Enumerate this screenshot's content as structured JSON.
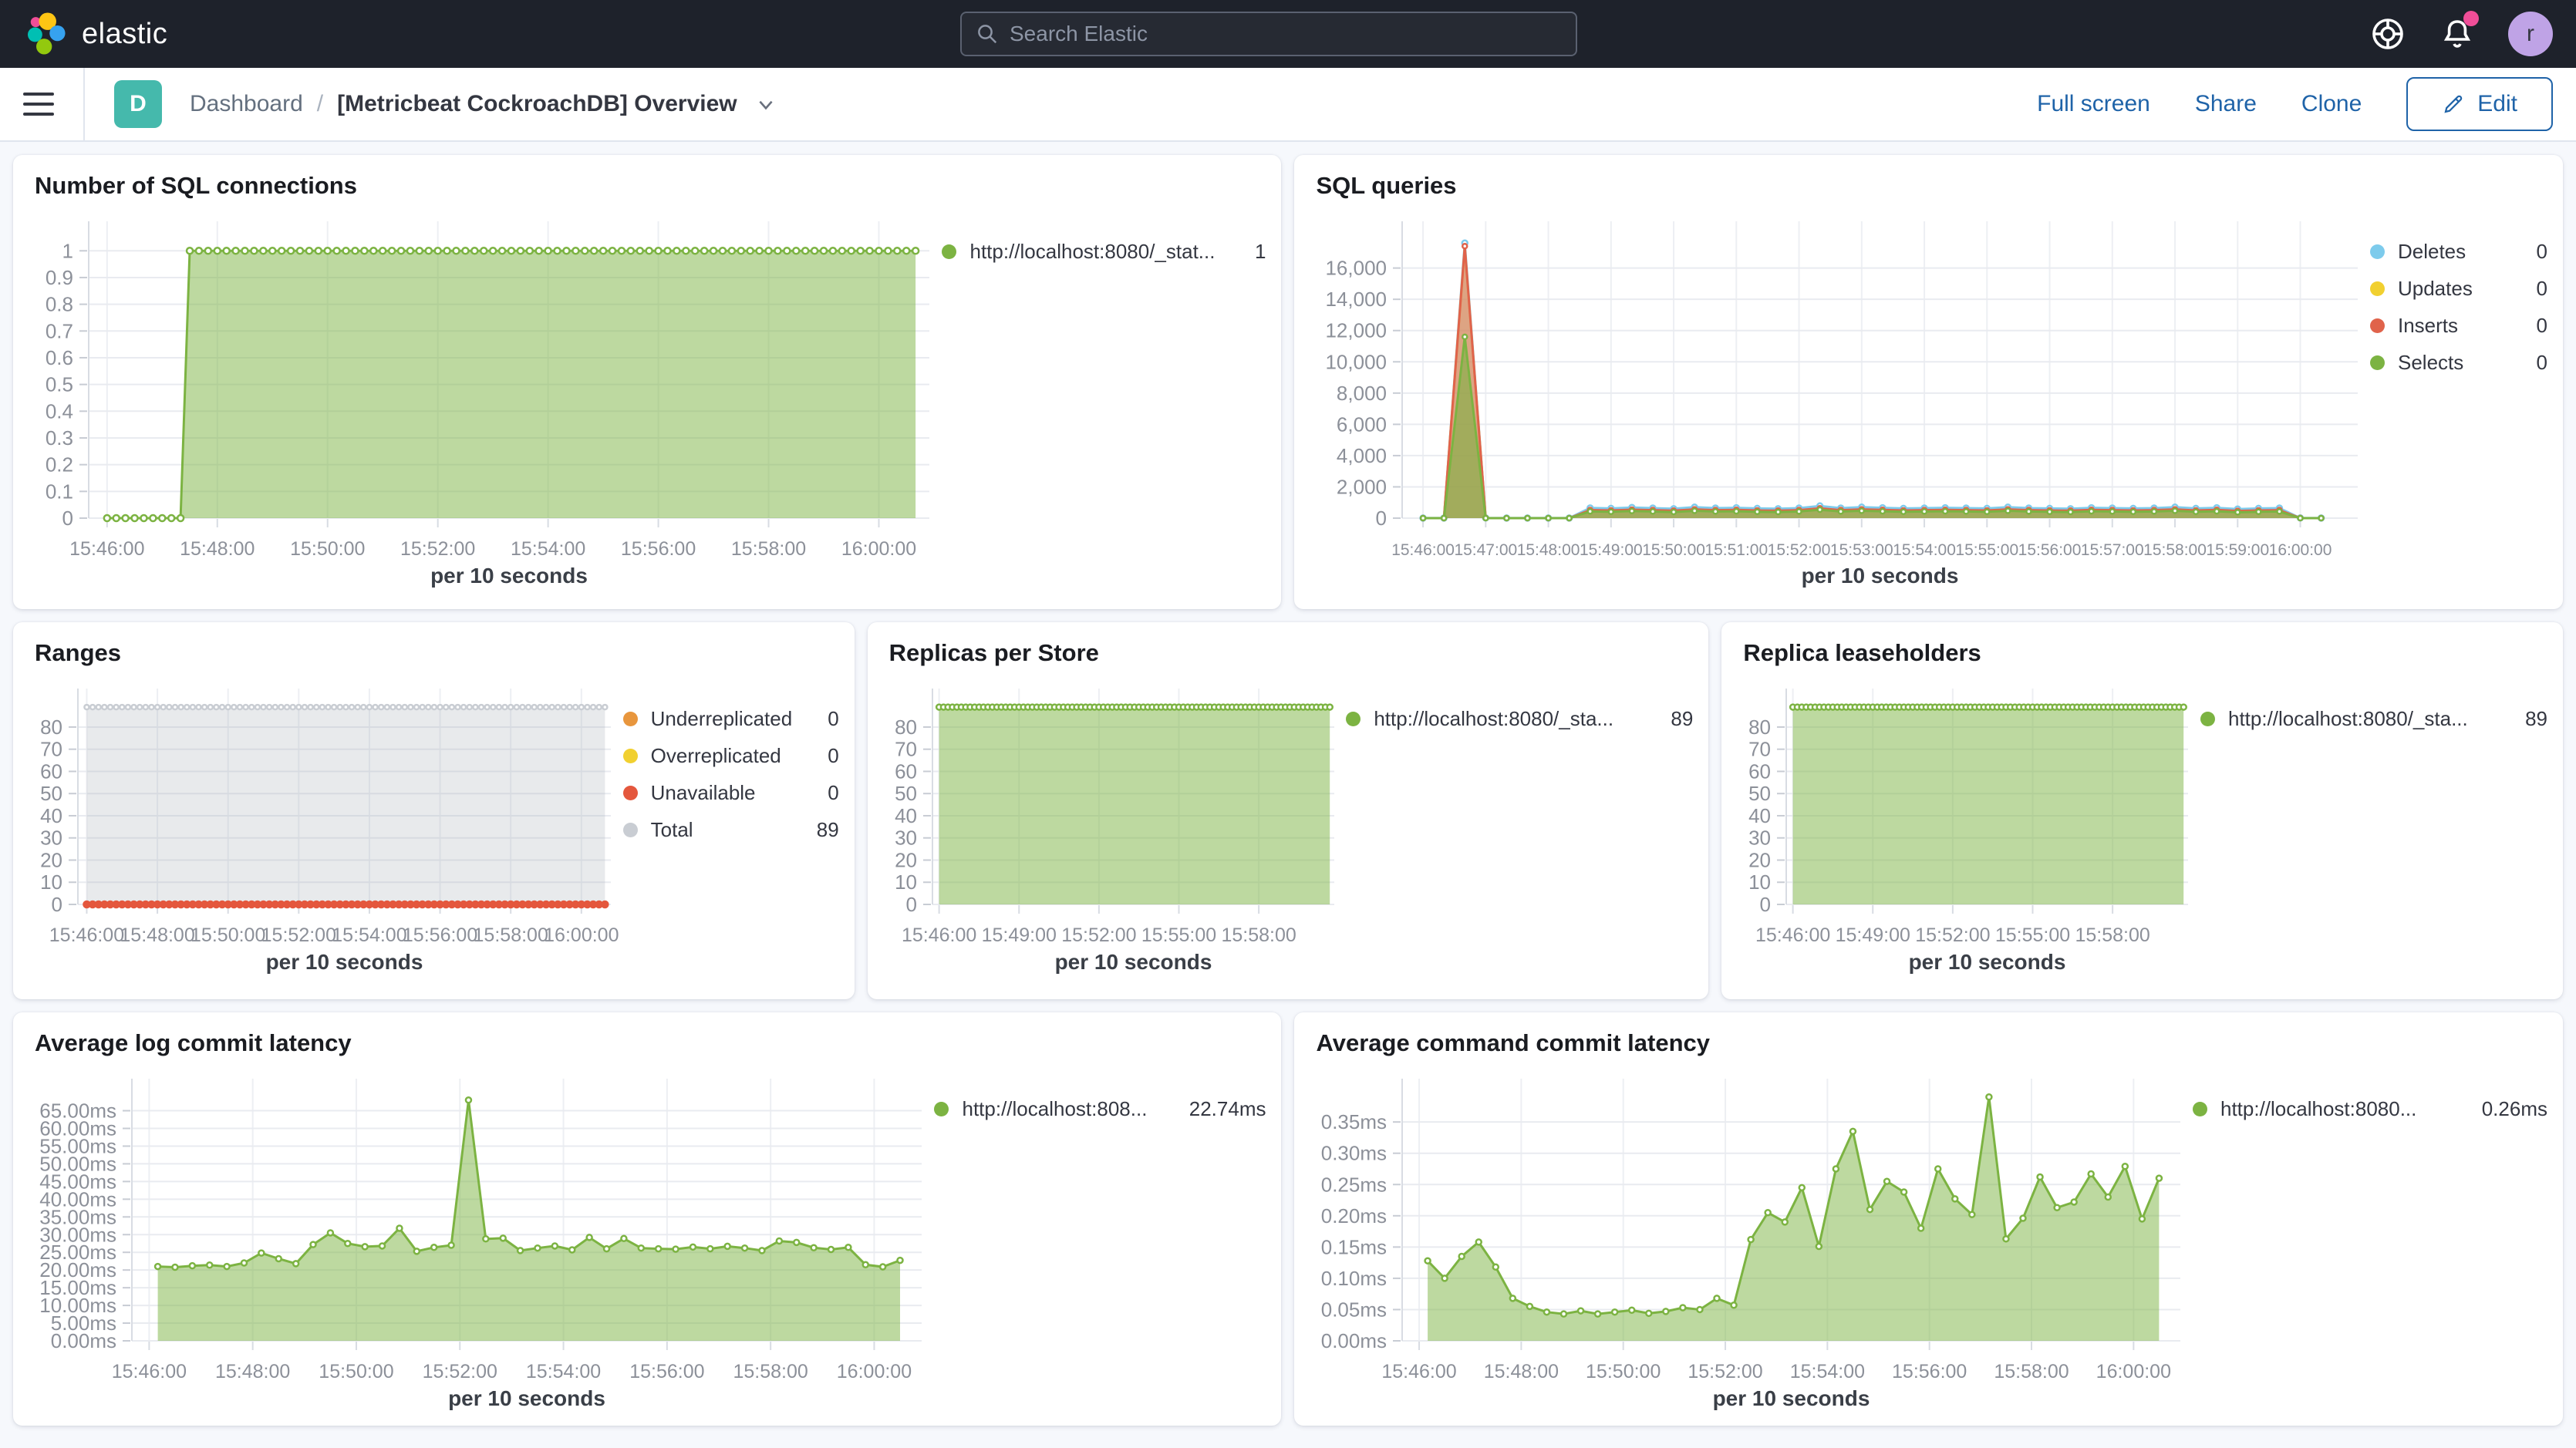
{
  "theme": {
    "header_bg": "#1E222B",
    "link_blue": "#1F63A8",
    "badge_teal": "#45B9AC",
    "notification_pink": "#F04E98",
    "avatar_purple": "#BFA3E6",
    "series_green": "#7CB342",
    "series_cyan": "#7DCBEC",
    "series_yellow": "#F1D030",
    "series_red": "#E0634B",
    "series_orange": "#E8963D",
    "series_gray": "#C9CDD3"
  },
  "nav": {
    "logo_text": "elastic",
    "search_placeholder": "Search Elastic",
    "avatar_initial": "r"
  },
  "toolbar": {
    "breadcrumb_root": "Dashboard",
    "breadcrumb_sep": "/",
    "title": "[Metricbeat CockroachDB] Overview",
    "actions": [
      "Full screen",
      "Share",
      "Clone"
    ],
    "edit_label": "Edit",
    "dashboard_badge": "D"
  },
  "charts": [
    {
      "type": "area",
      "title": "Number of SQL connections",
      "x_label": "per 10 seconds",
      "x_domain": [
        "15:45:40",
        "16:00:55"
      ],
      "x_ticks": [
        "15:46:00",
        "15:48:00",
        "15:50:00",
        "15:52:00",
        "15:54:00",
        "15:56:00",
        "15:58:00",
        "16:00:00"
      ],
      "y_min": 0,
      "y_max": 1.07,
      "y_ticks": [
        [
          1,
          "1"
        ],
        [
          0.9,
          "0.9"
        ],
        [
          0.8,
          "0.8"
        ],
        [
          0.7,
          "0.7"
        ],
        [
          0.6,
          "0.6"
        ],
        [
          0.5,
          "0.5"
        ],
        [
          0.4,
          "0.4"
        ],
        [
          0.3,
          "0.3"
        ],
        [
          0.2,
          "0.2"
        ],
        [
          0.1,
          "0.1"
        ],
        [
          0,
          "0"
        ]
      ],
      "series": [
        {
          "name": "http://localhost:8080/_stat...",
          "color": "#7CB342",
          "fill": "rgba(124,179,66,0.5)",
          "marker": true,
          "marker_r": 4,
          "runs": [
            {
              "start": "15:46:00",
              "end": "15:47:20",
              "step": 10,
              "const_value": 0
            },
            {
              "start": "15:47:30",
              "end": "16:00:40",
              "step": 10,
              "const_value": 1
            }
          ]
        }
      ],
      "legend": [
        {
          "color": "#7CB342",
          "label": "http://localhost:8080/_stat...",
          "value": "1"
        }
      ]
    },
    {
      "type": "area",
      "title": "SQL queries",
      "x_label": "per 10 seconds",
      "x_domain": [
        "15:45:40",
        "16:00:55"
      ],
      "x_ticks": [
        "15:46:00",
        "15:47:00",
        "15:48:00",
        "15:49:00",
        "15:50:00",
        "15:51:00",
        "15:52:00",
        "15:53:00",
        "15:54:00",
        "15:55:00",
        "15:56:00",
        "15:57:00",
        "15:58:00",
        "15:59:00",
        "16:00:00"
      ],
      "y_min": 0,
      "y_max": 18300,
      "y_ticks": [
        [
          0,
          "0"
        ],
        [
          2000,
          "2,000"
        ],
        [
          4000,
          "4,000"
        ],
        [
          6000,
          "6,000"
        ],
        [
          8000,
          "8,000"
        ],
        [
          10000,
          "10,000"
        ],
        [
          12000,
          "12,000"
        ],
        [
          14000,
          "14,000"
        ],
        [
          16000,
          "16,000"
        ]
      ],
      "series": [
        {
          "name": "Deletes",
          "color": "#7DCBEC",
          "fill": "rgba(125,203,236,0.35)",
          "marker": true,
          "marker_r": 3.5,
          "runs": [
            {
              "start": "15:46:00",
              "step": 20,
              "values": [
                5,
                5,
                17600,
                10,
                5,
                5,
                5,
                5,
                650,
                620,
                680,
                640,
                600,
                700,
                640,
                660,
                620,
                600,
                640,
                780,
                640,
                700,
                660,
                620,
                640,
                660,
                640,
                620,
                700,
                640,
                620,
                600,
                660,
                640,
                620,
                640,
                700,
                620,
                660,
                580,
                620,
                640,
                10,
                5
              ]
            }
          ]
        },
        {
          "name": "Updates",
          "color": "#F1D030",
          "fill": "rgba(241,208,48,0.3)",
          "marker": false,
          "runs": [
            {
              "start": "15:46:00",
              "step": 20,
              "values": [
                1,
                1,
                17350,
                4,
                1,
                1,
                1,
                1,
                490,
                465,
                515,
                485,
                452,
                530,
                485,
                500,
                465,
                452,
                485,
                600,
                485,
                530,
                500,
                465,
                485,
                500,
                485,
                465,
                530,
                485,
                465,
                452,
                500,
                485,
                465,
                485,
                530,
                465,
                500,
                437,
                465,
                485,
                4,
                1
              ]
            }
          ]
        },
        {
          "name": "Inserts",
          "color": "#E0634B",
          "fill": "rgba(224,99,75,0.5)",
          "marker": true,
          "marker_r": 3,
          "runs": [
            {
              "start": "15:46:00",
              "step": 20,
              "values": [
                2,
                2,
                17400,
                6,
                2,
                2,
                2,
                2,
                520,
                495,
                545,
                515,
                480,
                560,
                515,
                530,
                495,
                480,
                515,
                630,
                515,
                560,
                530,
                495,
                515,
                530,
                515,
                495,
                560,
                515,
                495,
                480,
                530,
                515,
                495,
                515,
                560,
                495,
                530,
                465,
                495,
                515,
                6,
                2
              ]
            }
          ]
        },
        {
          "name": "Selects",
          "color": "#7CB342",
          "fill": "rgba(124,179,66,0.6)",
          "marker": true,
          "marker_r": 3,
          "runs": [
            {
              "start": "15:46:00",
              "step": 20,
              "values": [
                0,
                0,
                11600,
                2,
                0,
                0,
                0,
                0,
                430,
                405,
                455,
                425,
                392,
                470,
                425,
                440,
                405,
                392,
                425,
                540,
                425,
                470,
                440,
                405,
                425,
                440,
                425,
                405,
                470,
                425,
                405,
                392,
                440,
                425,
                405,
                425,
                470,
                405,
                440,
                377,
                405,
                425,
                2,
                0
              ]
            }
          ]
        }
      ],
      "legend": [
        {
          "color": "#7DCBEC",
          "label": "Deletes",
          "value": "0"
        },
        {
          "color": "#F1D030",
          "label": "Updates",
          "value": "0"
        },
        {
          "color": "#E0634B",
          "label": "Inserts",
          "value": "0"
        },
        {
          "color": "#7CB342",
          "label": "Selects",
          "value": "0"
        }
      ]
    },
    {
      "type": "area",
      "title": "Ranges",
      "x_label": "per 10 seconds",
      "x_domain": [
        "15:45:45",
        "16:00:50"
      ],
      "x_ticks": [
        "15:46:00",
        "15:48:00",
        "15:50:00",
        "15:52:00",
        "15:54:00",
        "15:56:00",
        "15:58:00",
        "16:00:00"
      ],
      "y_min": 0,
      "y_max": 92.5,
      "y_ticks": [
        [
          80,
          "80"
        ],
        [
          70,
          "70"
        ],
        [
          60,
          "60"
        ],
        [
          50,
          "50"
        ],
        [
          40,
          "40"
        ],
        [
          30,
          "30"
        ],
        [
          20,
          "20"
        ],
        [
          10,
          "10"
        ],
        [
          0,
          "0"
        ]
      ],
      "series": [
        {
          "name": "Underreplicated",
          "color": "#E8963D",
          "marker": false,
          "runs": [
            {
              "start": "15:46:00",
              "end": "16:00:40",
              "step": 10,
              "const_value": 0
            }
          ]
        },
        {
          "name": "Overreplicated",
          "color": "#F1D030",
          "marker": false,
          "runs": [
            {
              "start": "15:46:00",
              "end": "16:00:40",
              "step": 10,
              "const_value": 0
            }
          ]
        },
        {
          "name": "Total",
          "color": "#C9CDD3",
          "fill": "rgba(165,170,180,0.25)",
          "marker": true,
          "marker_r": 3,
          "runs": [
            {
              "start": "15:46:00",
              "end": "16:00:40",
              "step": 10,
              "const_value": 89
            }
          ]
        },
        {
          "name": "Unavailable",
          "color": "#E4573D",
          "marker": true,
          "marker_r": 4,
          "marker_solid": true,
          "runs": [
            {
              "start": "15:46:00",
              "end": "16:00:40",
              "step": 10,
              "const_value": 0
            }
          ]
        }
      ],
      "legend": [
        {
          "color": "#E8963D",
          "label": "Underreplicated",
          "value": "0"
        },
        {
          "color": "#F1D030",
          "label": "Overreplicated",
          "value": "0"
        },
        {
          "color": "#E4573D",
          "label": "Unavailable",
          "value": "0"
        },
        {
          "color": "#C9CDD3",
          "label": "Total",
          "value": "89"
        }
      ]
    },
    {
      "type": "area",
      "title": "Replicas per Store",
      "x_label": "per 10 seconds",
      "x_domain": [
        "15:45:45",
        "16:00:50"
      ],
      "x_ticks": [
        "15:46:00",
        "15:49:00",
        "15:52:00",
        "15:55:00",
        "15:58:00"
      ],
      "y_min": 0,
      "y_max": 92.5,
      "y_ticks": [
        [
          80,
          "80"
        ],
        [
          70,
          "70"
        ],
        [
          60,
          "60"
        ],
        [
          50,
          "50"
        ],
        [
          40,
          "40"
        ],
        [
          30,
          "30"
        ],
        [
          20,
          "20"
        ],
        [
          10,
          "10"
        ],
        [
          0,
          "0"
        ]
      ],
      "series": [
        {
          "name": "http://localhost:8080/_sta...",
          "color": "#7CB342",
          "fill": "rgba(124,179,66,0.5)",
          "marker": true,
          "marker_r": 3.5,
          "runs": [
            {
              "start": "15:46:00",
              "end": "16:00:40",
              "step": 10,
              "const_value": 89
            }
          ]
        }
      ],
      "legend": [
        {
          "color": "#7CB342",
          "label": "http://localhost:8080/_sta...",
          "value": "89"
        }
      ]
    },
    {
      "type": "area",
      "title": "Replica leaseholders",
      "x_label": "per 10 seconds",
      "x_domain": [
        "15:45:45",
        "16:00:50"
      ],
      "x_ticks": [
        "15:46:00",
        "15:49:00",
        "15:52:00",
        "15:55:00",
        "15:58:00"
      ],
      "y_min": 0,
      "y_max": 92.5,
      "y_ticks": [
        [
          80,
          "80"
        ],
        [
          70,
          "70"
        ],
        [
          60,
          "60"
        ],
        [
          50,
          "50"
        ],
        [
          40,
          "40"
        ],
        [
          30,
          "30"
        ],
        [
          20,
          "20"
        ],
        [
          10,
          "10"
        ],
        [
          0,
          "0"
        ]
      ],
      "series": [
        {
          "name": "http://localhost:8080/_sta...",
          "color": "#7CB342",
          "fill": "rgba(124,179,66,0.5)",
          "marker": true,
          "marker_r": 3.5,
          "runs": [
            {
              "start": "15:46:00",
              "end": "16:00:40",
              "step": 10,
              "const_value": 89
            }
          ]
        }
      ],
      "legend": [
        {
          "color": "#7CB342",
          "label": "http://localhost:8080/_sta...",
          "value": "89"
        }
      ]
    },
    {
      "type": "area",
      "title": "Average log commit latency",
      "x_label": "per 10 seconds",
      "x_domain": [
        "15:45:40",
        "16:00:55"
      ],
      "x_ticks": [
        "15:46:00",
        "15:48:00",
        "15:50:00",
        "15:52:00",
        "15:54:00",
        "15:56:00",
        "15:58:00",
        "16:00:00"
      ],
      "y_min": 0,
      "y_max": 71,
      "y_ticks": [
        [
          65,
          "65.00ms"
        ],
        [
          60,
          "60.00ms"
        ],
        [
          55,
          "55.00ms"
        ],
        [
          50,
          "50.00ms"
        ],
        [
          45,
          "45.00ms"
        ],
        [
          40,
          "40.00ms"
        ],
        [
          35,
          "35.00ms"
        ],
        [
          30,
          "30.00ms"
        ],
        [
          25,
          "25.00ms"
        ],
        [
          20,
          "20.00ms"
        ],
        [
          15,
          "15.00ms"
        ],
        [
          10,
          "10.00ms"
        ],
        [
          5,
          "5.00ms"
        ],
        [
          0,
          "0.00ms"
        ]
      ],
      "series": [
        {
          "name": "http://localhost:808...",
          "color": "#7CB342",
          "fill": "rgba(124,179,66,0.5)",
          "marker": true,
          "marker_r": 3.5,
          "runs": [
            {
              "start": "15:46:10",
              "step": 20,
              "values": [
                21,
                20.8,
                21.2,
                21.4,
                21,
                22,
                24.8,
                23.2,
                21.8,
                27.2,
                30.5,
                27.5,
                26.6,
                26.8,
                31.8,
                25.3,
                26.4,
                27,
                68,
                28.8,
                29,
                25.5,
                26.2,
                26.8,
                25.7,
                29.2,
                26,
                28.9,
                26.2,
                26,
                25.9,
                26.5,
                26,
                26.7,
                26.2,
                25.5,
                28.2,
                27.8,
                26.3,
                25.8,
                26.4,
                21.5,
                20.9,
                22.74
              ]
            }
          ]
        }
      ],
      "legend": [
        {
          "color": "#7CB342",
          "label": "http://localhost:808...",
          "value": "22.74ms"
        }
      ]
    },
    {
      "type": "area",
      "title": "Average command commit latency",
      "x_label": "per 10 seconds",
      "x_domain": [
        "15:45:40",
        "16:00:55"
      ],
      "x_ticks": [
        "15:46:00",
        "15:48:00",
        "15:50:00",
        "15:52:00",
        "15:54:00",
        "15:56:00",
        "15:58:00",
        "16:00:00"
      ],
      "y_min": 0,
      "y_max": 0.402,
      "y_ticks": [
        [
          0.35,
          "0.35ms"
        ],
        [
          0.3,
          "0.30ms"
        ],
        [
          0.25,
          "0.25ms"
        ],
        [
          0.2,
          "0.20ms"
        ],
        [
          0.15,
          "0.15ms"
        ],
        [
          0.1,
          "0.10ms"
        ],
        [
          0.05,
          "0.05ms"
        ],
        [
          0,
          "0.00ms"
        ]
      ],
      "series": [
        {
          "name": "http://localhost:8080...",
          "color": "#7CB342",
          "fill": "rgba(124,179,66,0.5)",
          "marker": true,
          "marker_r": 3.5,
          "runs": [
            {
              "start": "15:46:10",
              "step": 20,
              "values": [
                0.128,
                0.1,
                0.135,
                0.158,
                0.118,
                0.068,
                0.055,
                0.046,
                0.043,
                0.048,
                0.043,
                0.046,
                0.049,
                0.044,
                0.047,
                0.053,
                0.05,
                0.068,
                0.057,
                0.162,
                0.205,
                0.19,
                0.245,
                0.151,
                0.275,
                0.335,
                0.21,
                0.255,
                0.238,
                0.18,
                0.275,
                0.227,
                0.202,
                0.39,
                0.163,
                0.196,
                0.262,
                0.213,
                0.222,
                0.267,
                0.23,
                0.279,
                0.195,
                0.26
              ]
            }
          ]
        }
      ],
      "legend": [
        {
          "color": "#7CB342",
          "label": "http://localhost:8080...",
          "value": "0.26ms"
        }
      ]
    }
  ]
}
